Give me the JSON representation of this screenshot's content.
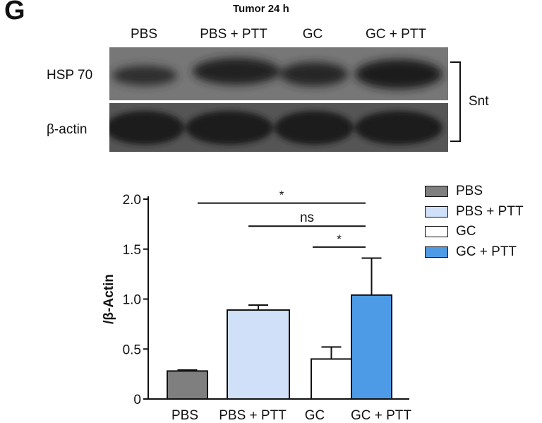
{
  "figure": {
    "panel_letter": "G",
    "blot": {
      "title": "Tumor 24 h",
      "lanes": [
        "PBS",
        "PBS + PTT",
        "GC",
        "GC + PTT"
      ],
      "rows": [
        "HSP 70",
        "β-actin"
      ],
      "bracket_label": "Snt"
    }
  },
  "chart_data": {
    "type": "bar",
    "categories": [
      "PBS",
      "PBS + PTT",
      "GC",
      "GC + PTT"
    ],
    "values": [
      0.28,
      0.89,
      0.4,
      1.04
    ],
    "errors": [
      0.01,
      0.05,
      0.12,
      0.37
    ],
    "colors": [
      "#7f7f7f",
      "#cfe0f8",
      "#ffffff",
      "#4d9be6"
    ],
    "ylabel": "/β-Actin",
    "xlabel": "",
    "ylim": [
      0,
      2.0
    ],
    "yticks": [
      0,
      0.5,
      1.0,
      1.5,
      2.0
    ],
    "ytick_labels": [
      "0",
      "0.5",
      "1.0",
      "1.5",
      "2.0"
    ],
    "significance": [
      {
        "from": "PBS",
        "to": "GC + PTT",
        "label": "*",
        "y": 1.96
      },
      {
        "from": "PBS + PTT",
        "to": "GC + PTT",
        "label": "ns",
        "y": 1.73
      },
      {
        "from": "GC",
        "to": "GC + PTT",
        "label": "*",
        "y": 1.52
      }
    ],
    "legend": {
      "position": "right",
      "entries": [
        "PBS",
        "PBS + PTT",
        "GC",
        "GC + PTT"
      ]
    },
    "grid": false
  }
}
